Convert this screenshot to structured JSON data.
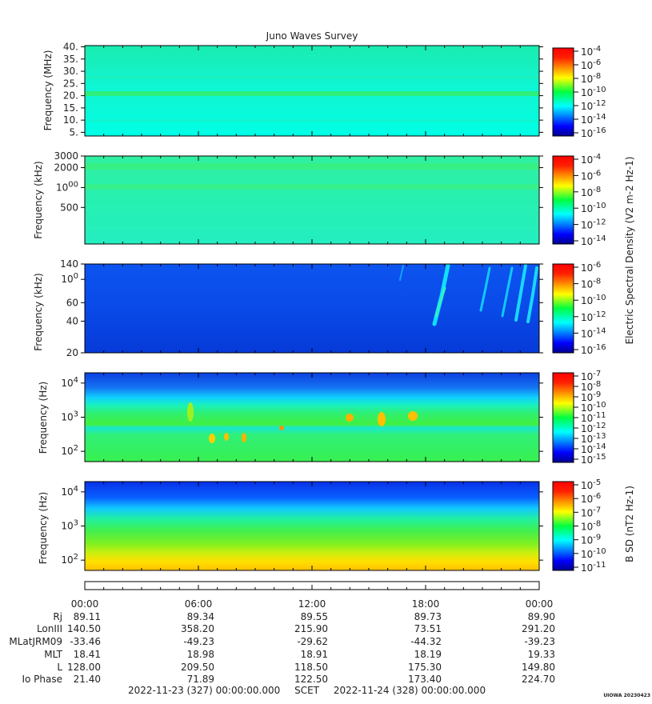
{
  "chart_data": {
    "type": "heatmap",
    "title": "Juno Waves Survey",
    "time_axis": {
      "tick_labels": [
        "00:00",
        "06:00",
        "12:00",
        "18:00",
        "00:00"
      ],
      "start": "2022-11-23 (327) 00:00:00.000",
      "end": "2022-11-24 (328) 00:00:00.000",
      "frame": "SCET"
    },
    "panels": [
      {
        "ylabel": "Frequency (MHz)",
        "y_scale": "linear",
        "ylim": [
          3.5,
          40.5
        ],
        "y_ticks": [
          "40.",
          "35.",
          "30.",
          "25.",
          "20.",
          "15.",
          "10.",
          "5."
        ],
        "colorbar": {
          "ticks": [
            "10-4",
            "10-6",
            "10-8",
            "10-10",
            "10-12",
            "10-14",
            "10-16"
          ]
        }
      },
      {
        "ylabel": "Frequency (kHz)",
        "y_scale": "log",
        "ylim": [
          140,
          3000
        ],
        "y_ticks": [
          "3000",
          "2000",
          "1000",
          "500"
        ],
        "colorbar": {
          "ticks": [
            "10-4",
            "10-6",
            "10-8",
            "10-10",
            "10-12",
            "10-14"
          ],
          "label": "Electric Spectral Density (V2 m-2 Hz-1)"
        }
      },
      {
        "ylabel": "Frequency (kHz)",
        "y_scale": "log",
        "ylim": [
          20,
          140
        ],
        "y_ticks": [
          "140",
          "100",
          "60",
          "40",
          "20"
        ],
        "colorbar": {
          "ticks": [
            "10-6",
            "10-8",
            "10-10",
            "10-12",
            "10-14",
            "10-16"
          ]
        }
      },
      {
        "ylabel": "Frequency (Hz)",
        "y_scale": "log",
        "ylim": [
          50,
          20000
        ],
        "y_ticks": [
          "104",
          "103",
          "102"
        ],
        "colorbar": {
          "ticks": [
            "10-7",
            "10-8",
            "10-9",
            "10-10",
            "10-11",
            "10-12",
            "10-13",
            "10-14",
            "10-15"
          ]
        }
      },
      {
        "ylabel": "Frequency (Hz)",
        "y_scale": "log",
        "ylim": [
          50,
          20000
        ],
        "y_ticks": [
          "104",
          "103",
          "102"
        ],
        "colorbar": {
          "ticks": [
            "10-5",
            "10-6",
            "10-7",
            "10-8",
            "10-9",
            "10-10",
            "10-11"
          ],
          "label": "B SD (nT2 Hz-1)"
        }
      }
    ],
    "ephemeris": {
      "rows": [
        {
          "label": "Rj",
          "values": [
            "89.11",
            "89.34",
            "89.55",
            "89.73",
            "89.90"
          ]
        },
        {
          "label": "LonIII",
          "values": [
            "140.50",
            "358.20",
            "215.90",
            "73.51",
            "291.20"
          ]
        },
        {
          "label": "MLatJRM09",
          "values": [
            "-33.46",
            "-49.23",
            "-29.62",
            "-44.32",
            "-39.23"
          ]
        },
        {
          "label": "MLT",
          "values": [
            "18.41",
            "18.98",
            "18.91",
            "18.19",
            "19.33"
          ]
        },
        {
          "label": "L",
          "values": [
            "128.00",
            "209.50",
            "118.50",
            "175.30",
            "149.80"
          ]
        },
        {
          "label": "Io Phase",
          "values": [
            "21.40",
            "71.89",
            "122.50",
            "173.40",
            "224.70"
          ]
        }
      ]
    },
    "footer_stamp": "UIOWA 20230423"
  },
  "colors": {
    "jet": [
      "#00008f",
      "#0000ff",
      "#0080ff",
      "#00ffff",
      "#00ff80",
      "#80ff00",
      "#ffff00",
      "#ff8000",
      "#ff0000",
      "#8f0000"
    ]
  }
}
